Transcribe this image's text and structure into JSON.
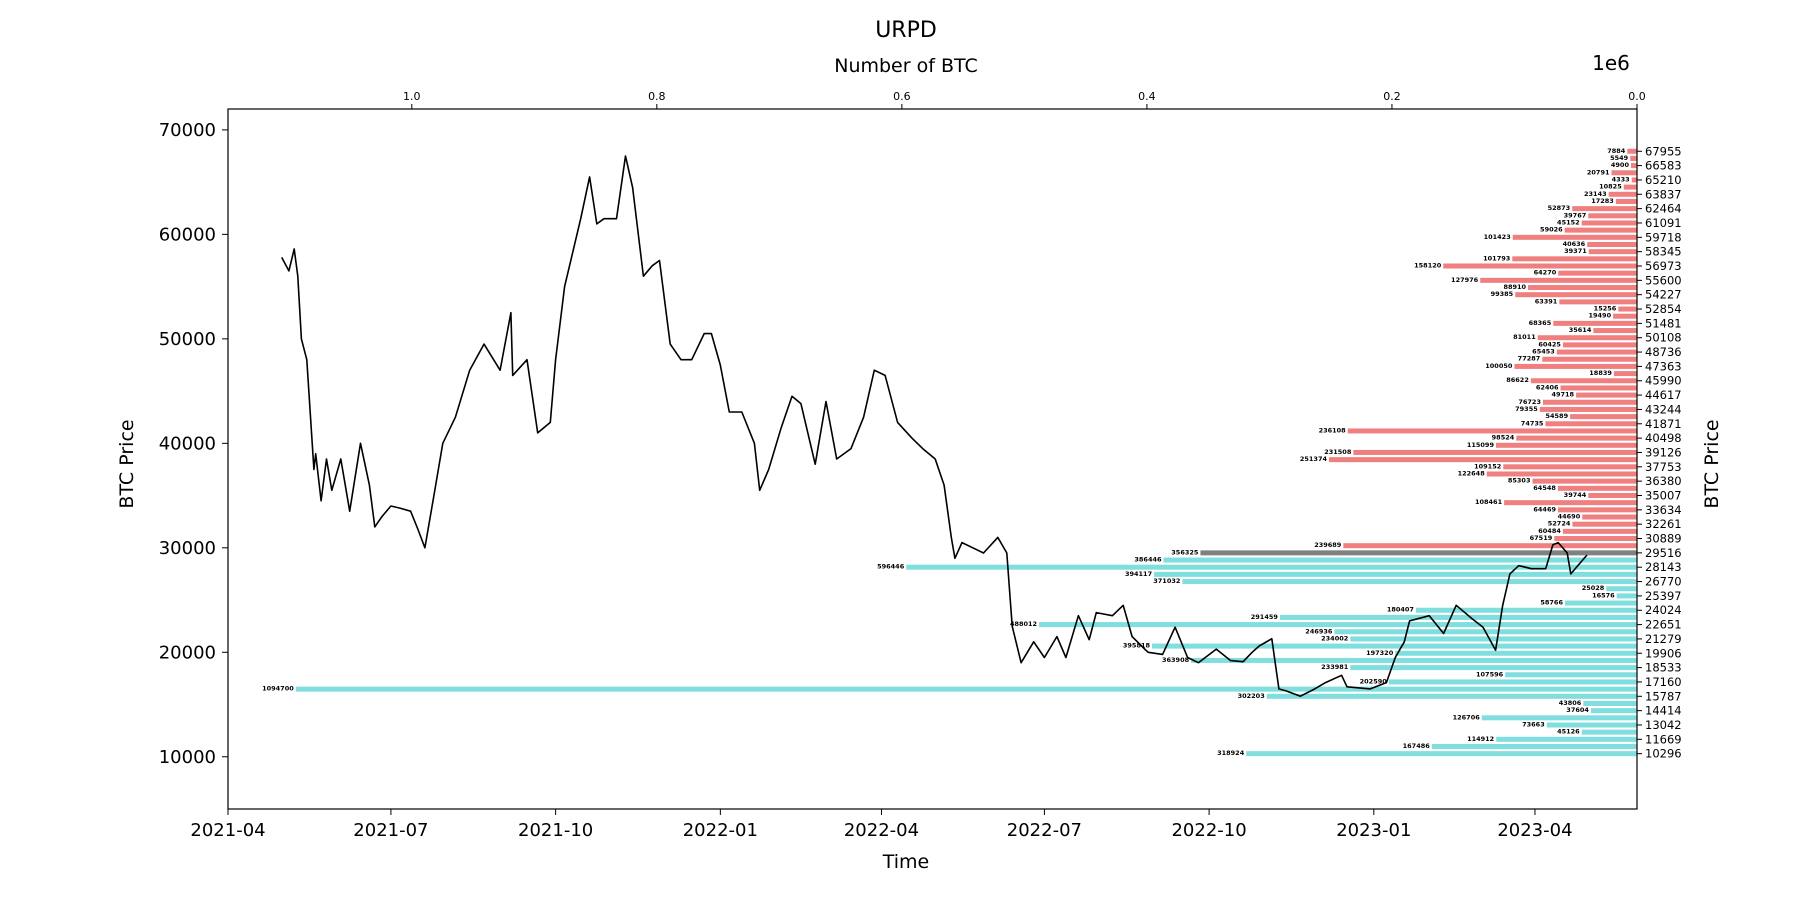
{
  "chart_data": {
    "type": "line",
    "title": "URPD",
    "xlabel": "Time",
    "ylabel": "BTC Price",
    "ylabel_right": "BTC Price",
    "top_axis_label": "Number of BTC",
    "top_axis_offset": "1e6",
    "top_ticks": [
      "1.0",
      "0.8",
      "0.6",
      "0.4",
      "0.2",
      "0.0"
    ],
    "xlim": [
      "2021-04-01",
      "2023-05-28"
    ],
    "ylim": [
      5000,
      72000
    ],
    "x_ticks": [
      "2021-04",
      "2021-07",
      "2021-10",
      "2022-01",
      "2022-04",
      "2022-07",
      "2022-10",
      "2023-01",
      "2023-04"
    ],
    "y_ticks": [
      10000,
      20000,
      30000,
      40000,
      50000,
      60000,
      70000
    ],
    "top_axis_range": [
      1150000,
      0
    ],
    "grid": false,
    "line_color": "#000000",
    "current_price_bucket": 29516,
    "colors": {
      "above": "#f08080",
      "below": "#80dede",
      "current": "#808080"
    },
    "series": [
      {
        "values": [
          [
            "2021-05-01",
            57800
          ],
          [
            "2021-05-05",
            56500
          ],
          [
            "2021-05-08",
            58600
          ],
          [
            "2021-05-10",
            56000
          ],
          [
            "2021-05-12",
            50000
          ],
          [
            "2021-05-15",
            48000
          ],
          [
            "2021-05-19",
            37500
          ],
          [
            "2021-05-20",
            39000
          ],
          [
            "2021-05-23",
            34500
          ],
          [
            "2021-05-26",
            38500
          ],
          [
            "2021-05-29",
            35500
          ],
          [
            "2021-06-03",
            38500
          ],
          [
            "2021-06-08",
            33500
          ],
          [
            "2021-06-14",
            40000
          ],
          [
            "2021-06-19",
            36000
          ],
          [
            "2021-06-22",
            32000
          ],
          [
            "2021-06-26",
            33000
          ],
          [
            "2021-07-01",
            34000
          ],
          [
            "2021-07-06",
            33800
          ],
          [
            "2021-07-12",
            33500
          ],
          [
            "2021-07-16",
            31800
          ],
          [
            "2021-07-20",
            30000
          ],
          [
            "2021-07-25",
            35000
          ],
          [
            "2021-07-30",
            40000
          ],
          [
            "2021-08-06",
            42500
          ],
          [
            "2021-08-14",
            47000
          ],
          [
            "2021-08-22",
            49500
          ],
          [
            "2021-08-31",
            47000
          ],
          [
            "2021-09-06",
            52500
          ],
          [
            "2021-09-07",
            46500
          ],
          [
            "2021-09-15",
            48000
          ],
          [
            "2021-09-21",
            41000
          ],
          [
            "2021-09-28",
            42000
          ],
          [
            "2021-10-01",
            48000
          ],
          [
            "2021-10-06",
            55000
          ],
          [
            "2021-10-15",
            61500
          ],
          [
            "2021-10-20",
            65500
          ],
          [
            "2021-10-24",
            61000
          ],
          [
            "2021-10-28",
            61500
          ],
          [
            "2021-11-04",
            61500
          ],
          [
            "2021-11-09",
            67500
          ],
          [
            "2021-11-13",
            64500
          ],
          [
            "2021-11-19",
            56000
          ],
          [
            "2021-11-24",
            57000
          ],
          [
            "2021-11-28",
            57500
          ],
          [
            "2021-12-04",
            49500
          ],
          [
            "2021-12-10",
            48000
          ],
          [
            "2021-12-16",
            48000
          ],
          [
            "2021-12-23",
            50500
          ],
          [
            "2021-12-27",
            50500
          ],
          [
            "2022-01-01",
            47500
          ],
          [
            "2022-01-06",
            43000
          ],
          [
            "2022-01-13",
            43000
          ],
          [
            "2022-01-20",
            40000
          ],
          [
            "2022-01-23",
            35500
          ],
          [
            "2022-01-28",
            37500
          ],
          [
            "2022-02-04",
            41500
          ],
          [
            "2022-02-10",
            44500
          ],
          [
            "2022-02-15",
            43800
          ],
          [
            "2022-02-23",
            38000
          ],
          [
            "2022-03-01",
            44000
          ],
          [
            "2022-03-07",
            38500
          ],
          [
            "2022-03-15",
            39500
          ],
          [
            "2022-03-22",
            42500
          ],
          [
            "2022-03-28",
            47000
          ],
          [
            "2022-04-03",
            46500
          ],
          [
            "2022-04-10",
            42000
          ],
          [
            "2022-04-18",
            40500
          ],
          [
            "2022-04-24",
            39500
          ],
          [
            "2022-05-01",
            38500
          ],
          [
            "2022-05-06",
            36000
          ],
          [
            "2022-05-10",
            31000
          ],
          [
            "2022-05-12",
            29000
          ],
          [
            "2022-05-16",
            30500
          ],
          [
            "2022-05-22",
            30000
          ],
          [
            "2022-05-28",
            29500
          ],
          [
            "2022-06-05",
            31000
          ],
          [
            "2022-06-10",
            29500
          ],
          [
            "2022-06-13",
            22500
          ],
          [
            "2022-06-18",
            19000
          ],
          [
            "2022-06-25",
            21000
          ],
          [
            "2022-07-01",
            19500
          ],
          [
            "2022-07-08",
            21500
          ],
          [
            "2022-07-13",
            19500
          ],
          [
            "2022-07-20",
            23500
          ],
          [
            "2022-07-26",
            21200
          ],
          [
            "2022-07-30",
            23800
          ],
          [
            "2022-08-08",
            23500
          ],
          [
            "2022-08-14",
            24500
          ],
          [
            "2022-08-19",
            21500
          ],
          [
            "2022-08-26",
            20300
          ],
          [
            "2022-08-28",
            20000
          ],
          [
            "2022-09-05",
            19800
          ],
          [
            "2022-09-12",
            22400
          ],
          [
            "2022-09-19",
            19500
          ],
          [
            "2022-09-25",
            19000
          ],
          [
            "2022-10-05",
            20300
          ],
          [
            "2022-10-13",
            19200
          ],
          [
            "2022-10-20",
            19100
          ],
          [
            "2022-10-25",
            20000
          ],
          [
            "2022-10-29",
            20600
          ],
          [
            "2022-11-05",
            21300
          ],
          [
            "2022-11-09",
            16500
          ],
          [
            "2022-11-13",
            16300
          ],
          [
            "2022-11-21",
            15800
          ],
          [
            "2022-11-28",
            16400
          ],
          [
            "2022-12-05",
            17100
          ],
          [
            "2022-12-14",
            17800
          ],
          [
            "2022-12-17",
            16700
          ],
          [
            "2022-12-30",
            16500
          ],
          [
            "2023-01-08",
            17100
          ],
          [
            "2023-01-13",
            19500
          ],
          [
            "2023-01-18",
            21000
          ],
          [
            "2023-01-21",
            23000
          ],
          [
            "2023-02-01",
            23500
          ],
          [
            "2023-02-09",
            21800
          ],
          [
            "2023-02-16",
            24500
          ],
          [
            "2023-02-25",
            23200
          ],
          [
            "2023-03-03",
            22400
          ],
          [
            "2023-03-10",
            20200
          ],
          [
            "2023-03-14",
            24500
          ],
          [
            "2023-03-18",
            27500
          ],
          [
            "2023-03-23",
            28300
          ],
          [
            "2023-03-30",
            28000
          ],
          [
            "2023-04-07",
            28000
          ],
          [
            "2023-04-11",
            30300
          ],
          [
            "2023-04-14",
            30500
          ],
          [
            "2023-04-19",
            29500
          ],
          [
            "2023-04-21",
            27500
          ],
          [
            "2023-04-26",
            28500
          ],
          [
            "2023-04-30",
            29300
          ]
        ]
      }
    ],
    "urpd": [
      {
        "price": 67955,
        "btc": 7884
      },
      {
        "price": 67269,
        "btc": 5549
      },
      {
        "price": 66583,
        "btc": 4900
      },
      {
        "price": 65896,
        "btc": 20791
      },
      {
        "price": 65210,
        "btc": 4333
      },
      {
        "price": 64524,
        "btc": 10825
      },
      {
        "price": 63837,
        "btc": 23143
      },
      {
        "price": 63151,
        "btc": 17283
      },
      {
        "price": 62464,
        "btc": 52873
      },
      {
        "price": 61778,
        "btc": 39767
      },
      {
        "price": 61091,
        "btc": 45152
      },
      {
        "price": 60405,
        "btc": 59026
      },
      {
        "price": 59718,
        "btc": 101423
      },
      {
        "price": 59032,
        "btc": 40636
      },
      {
        "price": 58345,
        "btc": 39371
      },
      {
        "price": 57659,
        "btc": 101793
      },
      {
        "price": 56973,
        "btc": 158120
      },
      {
        "price": 56286,
        "btc": 64270
      },
      {
        "price": 55600,
        "btc": 127976
      },
      {
        "price": 54913,
        "btc": 88910
      },
      {
        "price": 54227,
        "btc": 99385
      },
      {
        "price": 53540,
        "btc": 63391
      },
      {
        "price": 52854,
        "btc": 15256
      },
      {
        "price": 52167,
        "btc": 19490
      },
      {
        "price": 51481,
        "btc": 68365
      },
      {
        "price": 50794,
        "btc": 35614
      },
      {
        "price": 50108,
        "btc": 81011
      },
      {
        "price": 49422,
        "btc": 60425
      },
      {
        "price": 48736,
        "btc": 65453
      },
      {
        "price": 48049,
        "btc": 77287
      },
      {
        "price": 47363,
        "btc": 100050
      },
      {
        "price": 46676,
        "btc": 18839
      },
      {
        "price": 45990,
        "btc": 86622
      },
      {
        "price": 45303,
        "btc": 62406
      },
      {
        "price": 44617,
        "btc": 49718
      },
      {
        "price": 43930,
        "btc": 76723
      },
      {
        "price": 43244,
        "btc": 79355
      },
      {
        "price": 42557,
        "btc": 54589
      },
      {
        "price": 41871,
        "btc": 74735
      },
      {
        "price": 41185,
        "btc": 236108
      },
      {
        "price": 40498,
        "btc": 98524
      },
      {
        "price": 39812,
        "btc": 115099
      },
      {
        "price": 39126,
        "btc": 231508
      },
      {
        "price": 38439,
        "btc": 251374
      },
      {
        "price": 37753,
        "btc": 109152
      },
      {
        "price": 37066,
        "btc": 122648
      },
      {
        "price": 36380,
        "btc": 85303
      },
      {
        "price": 35693,
        "btc": 64548
      },
      {
        "price": 35007,
        "btc": 39744
      },
      {
        "price": 34320,
        "btc": 108461
      },
      {
        "price": 33634,
        "btc": 64469
      },
      {
        "price": 32948,
        "btc": 44690
      },
      {
        "price": 32261,
        "btc": 52724
      },
      {
        "price": 31575,
        "btc": 60484
      },
      {
        "price": 30889,
        "btc": 67519
      },
      {
        "price": 30202,
        "btc": 239689
      },
      {
        "price": 29516,
        "btc": 356325
      },
      {
        "price": 28829,
        "btc": 386446
      },
      {
        "price": 28143,
        "btc": 596446
      },
      {
        "price": 27456,
        "btc": 394117
      },
      {
        "price": 26770,
        "btc": 371032
      },
      {
        "price": 26083,
        "btc": 25028
      },
      {
        "price": 25397,
        "btc": 16576
      },
      {
        "price": 24710,
        "btc": 58766
      },
      {
        "price": 24024,
        "btc": 180407
      },
      {
        "price": 23338,
        "btc": 291459
      },
      {
        "price": 22651,
        "btc": 488012
      },
      {
        "price": 21965,
        "btc": 246936
      },
      {
        "price": 21279,
        "btc": 234002
      },
      {
        "price": 20592,
        "btc": 395818
      },
      {
        "price": 19906,
        "btc": 197320
      },
      {
        "price": 19219,
        "btc": 363908
      },
      {
        "price": 18533,
        "btc": 233981
      },
      {
        "price": 17846,
        "btc": 107596
      },
      {
        "price": 17160,
        "btc": 202590
      },
      {
        "price": 16473,
        "btc": 1094700
      },
      {
        "price": 15787,
        "btc": 302203
      },
      {
        "price": 15101,
        "btc": 43806
      },
      {
        "price": 14414,
        "btc": 37604
      },
      {
        "price": 13728,
        "btc": 126706
      },
      {
        "price": 13042,
        "btc": 73663
      },
      {
        "price": 12355,
        "btc": 45126
      },
      {
        "price": 11669,
        "btc": 114912
      },
      {
        "price": 10982,
        "btc": 167486
      },
      {
        "price": 10296,
        "btc": 318924
      }
    ],
    "right_ticks": [
      67955,
      66583,
      65210,
      63837,
      62464,
      61091,
      59718,
      58345,
      56973,
      55600,
      54227,
      52854,
      51481,
      50108,
      48736,
      47363,
      45990,
      44617,
      43244,
      41871,
      40498,
      39126,
      37753,
      36380,
      35007,
      33634,
      32261,
      30889,
      29516,
      28143,
      26770,
      25397,
      24024,
      22651,
      21279,
      19906,
      18533,
      17160,
      15787,
      14414,
      13042,
      11669,
      10296
    ]
  }
}
